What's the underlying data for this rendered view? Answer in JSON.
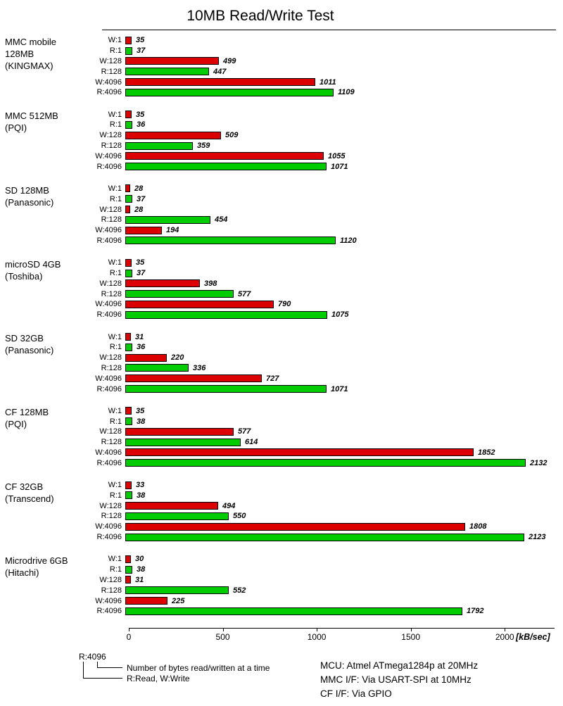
{
  "chart_data": {
    "type": "bar",
    "orientation": "horizontal",
    "title": "10MB Read/Write Test",
    "xlabel": "[kB/sec]",
    "xlim": [
      0,
      2250
    ],
    "xticks": [
      0,
      500,
      1000,
      1500,
      2000
    ],
    "grid": false,
    "bar_labels": [
      "W:1",
      "R:1",
      "W:128",
      "R:128",
      "W:4096",
      "R:4096"
    ],
    "colors": {
      "write": "#dd0000",
      "read": "#00cc00"
    },
    "groups": [
      {
        "device": "MMC mobile 128MB",
        "vendor": "(KINGMAX)",
        "values": [
          35,
          37,
          499,
          447,
          1011,
          1109
        ]
      },
      {
        "device": "MMC 512MB",
        "vendor": "(PQI)",
        "values": [
          35,
          36,
          509,
          359,
          1055,
          1071
        ]
      },
      {
        "device": "SD 128MB",
        "vendor": "(Panasonic)",
        "values": [
          28,
          37,
          28,
          454,
          194,
          1120
        ]
      },
      {
        "device": "microSD 4GB",
        "vendor": "(Toshiba)",
        "values": [
          35,
          37,
          398,
          577,
          790,
          1075
        ]
      },
      {
        "device": "SD 32GB",
        "vendor": "(Panasonic)",
        "values": [
          31,
          36,
          220,
          336,
          727,
          1071
        ]
      },
      {
        "device": "CF 128MB",
        "vendor": "(PQI)",
        "values": [
          35,
          38,
          577,
          614,
          1852,
          2132
        ]
      },
      {
        "device": "CF 32GB",
        "vendor": "(Transcend)",
        "values": [
          33,
          38,
          494,
          550,
          1808,
          2123
        ]
      },
      {
        "device": "Microdrive 6GB",
        "vendor": "(Hitachi)",
        "values": [
          30,
          38,
          31,
          552,
          225,
          1792
        ]
      }
    ]
  },
  "legend": {
    "example": "R:4096",
    "line1": "Number of bytes read/written at a time",
    "line2": "R:Read, W:Write"
  },
  "notes": [
    "MCU: Atmel ATmega1284p at 20MHz",
    "MMC I/F: Via USART-SPI at 10MHz",
    "CF I/F: Via GPIO"
  ]
}
